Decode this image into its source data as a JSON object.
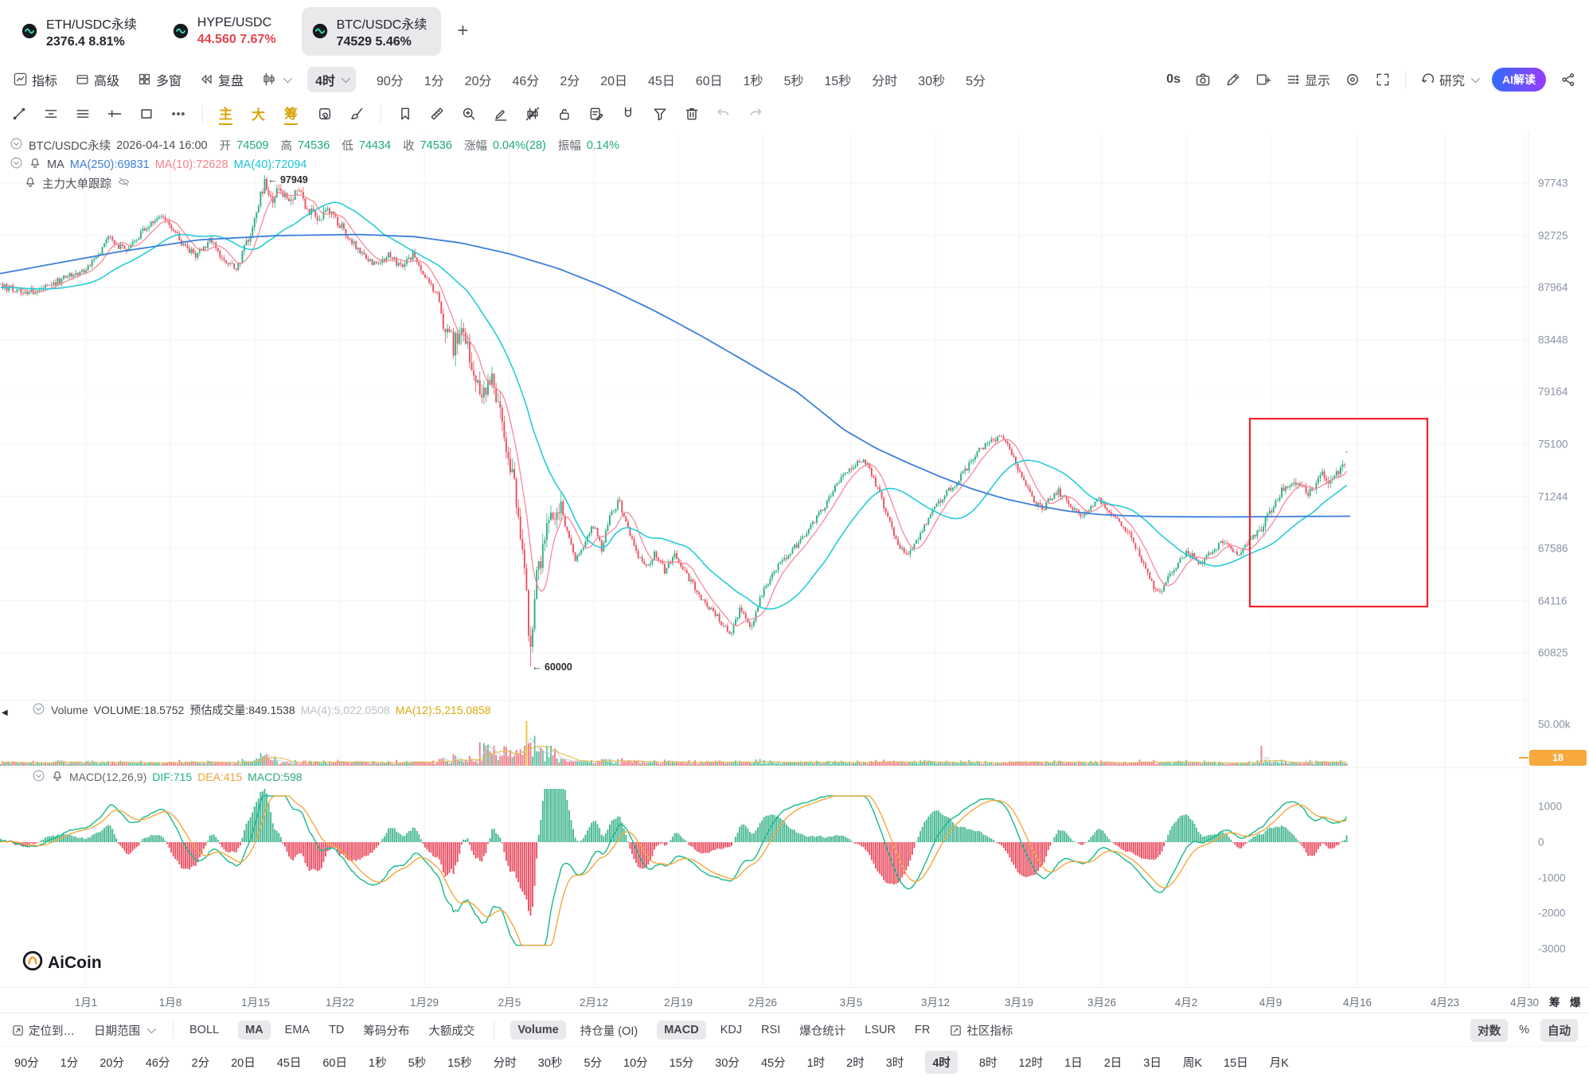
{
  "tabs": {
    "items": [
      {
        "symbol": "ETH/USDC永续",
        "price": "2376.4",
        "change": "8.81%",
        "color": "#23262f",
        "active": false
      },
      {
        "symbol": "HYPE/USDC",
        "price": "44.560",
        "change": "7.67%",
        "color": "#e2444d",
        "active": false
      },
      {
        "symbol": "BTC/USDC永续",
        "price": "74529",
        "change": "5.46%",
        "color": "#23262f",
        "active": true
      }
    ],
    "add_label": "+"
  },
  "toolbar": {
    "menus": [
      {
        "icon": "chart",
        "label": "指标"
      },
      {
        "icon": "panel",
        "label": "高级"
      },
      {
        "icon": "grid",
        "label": "多窗"
      },
      {
        "icon": "rewind",
        "label": "复盘"
      }
    ],
    "interval_selected": "4时",
    "intervals": [
      "90分",
      "1分",
      "20分",
      "46分",
      "2分",
      "20日",
      "45日",
      "60日",
      "1秒",
      "5秒",
      "15秒",
      "分时",
      "30秒",
      "5分"
    ],
    "timer": "0s",
    "right_icons": [
      "camera",
      "pencil",
      "addpane"
    ],
    "display_label": "显示",
    "right_icons2": [
      "target",
      "expand"
    ],
    "research_label": "研究",
    "ai_button": "AI解读"
  },
  "drawbar": {
    "icons_left": [
      "linetool",
      "hlines",
      "hlines2",
      "crossarrow",
      "recttool",
      "dots"
    ],
    "gold": [
      {
        "label": "主",
        "u": true
      },
      {
        "label": "大",
        "u": false
      },
      {
        "label": "筹",
        "u": true
      }
    ],
    "icons_mid": [
      "replay",
      "brush"
    ],
    "icons_right": [
      "bookmark",
      "ruler",
      "zoomin",
      "marker",
      "candlecmp",
      "lock",
      "note",
      "magnet",
      "funnel",
      "trash"
    ],
    "icons_disabled": [
      "undo",
      "redo"
    ]
  },
  "legend": {
    "ohlc": {
      "symbol": "BTC/USDC永续",
      "datetime": "2026-04-14 16:00",
      "o_l": "开",
      "o": "74509",
      "h_l": "高",
      "h": "74536",
      "l_l": "低",
      "l": "74434",
      "c_l": "收",
      "c": "74536",
      "chg_l": "涨幅",
      "chg": "0.04%(28)",
      "amp_l": "振幅",
      "amp": "0.14%"
    },
    "ma_title": "MA",
    "ma_items": [
      {
        "label": "MA(250):69831",
        "color": "#3d7fd9"
      },
      {
        "label": "MA(10):72628",
        "color": "#f6828c"
      },
      {
        "label": "MA(40):72094",
        "color": "#16c5dc"
      }
    ],
    "tracker": "主力大单跟踪"
  },
  "volume_legend": {
    "title": "Volume",
    "v": "VOLUME:18.5752",
    "est": "预估成交量:849.1538",
    "ma4": "MA(4):5,022.0508",
    "ma12": "MA(12):5,215.0858"
  },
  "macd_legend": {
    "title": "MACD(12,26,9)",
    "dif": "DIF:715",
    "dea": "DEA:415",
    "macd": "MACD:598"
  },
  "watermark": "AiCoin",
  "axis": {
    "price": [
      "97743",
      "92725",
      "87964",
      "83448",
      "79164",
      "75100",
      "71244",
      "67586",
      "64116",
      "60825"
    ],
    "volume": "50.00k",
    "volume_badge": "18",
    "macd": [
      "1000",
      "0",
      "-1000",
      "-2000",
      "-3000"
    ],
    "dates": [
      "1月1",
      "1月8",
      "1月15",
      "1月22",
      "1月29",
      "2月5",
      "2月12",
      "2月19",
      "2月26",
      "3月5",
      "3月12",
      "3月19",
      "3月26",
      "4月2",
      "4月9",
      "4月16",
      "4月23",
      "4月30"
    ],
    "side_tabs": [
      "筹",
      "爆"
    ]
  },
  "annotations": {
    "peak": "← 97949",
    "low": "← 60000"
  },
  "bottom": {
    "nav": [
      {
        "icon": "pintarget",
        "label": "定位到…"
      },
      {
        "icon": "",
        "label": "日期范围",
        "chev": true
      }
    ],
    "main_inds": [
      {
        "label": "BOLL"
      },
      {
        "label": "MA",
        "sel": true
      },
      {
        "label": "EMA"
      },
      {
        "label": "TD"
      },
      {
        "label": "筹码分布"
      },
      {
        "label": "大额成交"
      }
    ],
    "sub_inds": [
      {
        "label": "Volume",
        "sel": true
      },
      {
        "label": "持仓量 (OI)"
      },
      {
        "label": "MACD",
        "sel": true
      },
      {
        "label": "KDJ"
      },
      {
        "label": "RSI"
      },
      {
        "label": "爆仓统计"
      },
      {
        "label": "LSUR"
      },
      {
        "label": "FR"
      },
      {
        "label": "社区指标",
        "icon": "edit"
      }
    ],
    "right": [
      {
        "label": "对数",
        "sel": true
      },
      {
        "label": "%"
      },
      {
        "label": "自动",
        "sel": true
      }
    ],
    "timeframes": [
      {
        "label": "90分"
      },
      {
        "label": "1分"
      },
      {
        "label": "20分"
      },
      {
        "label": "46分"
      },
      {
        "label": "2分"
      },
      {
        "label": "20日"
      },
      {
        "label": "45日"
      },
      {
        "label": "60日"
      },
      {
        "label": "1秒"
      },
      {
        "label": "5秒"
      },
      {
        "label": "15秒"
      },
      {
        "label": "分时"
      },
      {
        "label": "30秒"
      },
      {
        "label": "5分"
      },
      {
        "label": "10分"
      },
      {
        "label": "15分"
      },
      {
        "label": "30分"
      },
      {
        "label": "45分"
      },
      {
        "label": "1时"
      },
      {
        "label": "2时"
      },
      {
        "label": "3时"
      },
      {
        "label": "4时",
        "sel": true
      },
      {
        "label": "8时"
      },
      {
        "label": "12时"
      },
      {
        "label": "1日"
      },
      {
        "label": "2日"
      },
      {
        "label": "3日"
      },
      {
        "label": "周K"
      },
      {
        "label": "15日"
      },
      {
        "label": "月K"
      }
    ]
  },
  "chart_data": {
    "type": "candlestick",
    "symbol": "BTC/USDC永续",
    "interval": "4h",
    "log_scale": true,
    "last_candle": {
      "open": 74509,
      "high": 74536,
      "low": 74434,
      "close": 74536,
      "change_pct": "0.04%(28)",
      "amplitude_pct": "0.14%"
    },
    "ma_values": {
      "ma250": 69831,
      "ma10": 72628,
      "ma40": 72094
    },
    "macd_values": {
      "dif": 715,
      "dea": 415,
      "macd": 598
    },
    "volume_values": {
      "current": 18.5752,
      "estimated": 849.1538,
      "ma4": 5022.0508,
      "ma12": 5215.0858
    },
    "price_ticks": [
      97743,
      92725,
      87964,
      83448,
      79164,
      75100,
      71244,
      67586,
      64116,
      60825
    ],
    "macd_ticks": [
      1000,
      0,
      -1000,
      -2000,
      -3000
    ],
    "volume_tick": 50000,
    "annotations": [
      {
        "text": "← 97949",
        "price": 97949
      },
      {
        "text": "← 60000",
        "price": 60000
      }
    ],
    "up_color": "#2fae84",
    "down_color": "#ea5060",
    "price_path": [
      [
        0,
        88000
      ],
      [
        40,
        87600
      ],
      [
        80,
        88800
      ],
      [
        112,
        89800
      ],
      [
        136,
        92400
      ],
      [
        158,
        91200
      ],
      [
        184,
        93600
      ],
      [
        206,
        94500
      ],
      [
        226,
        92100
      ],
      [
        246,
        90800
      ],
      [
        263,
        92400
      ],
      [
        279,
        90300
      ],
      [
        296,
        89700
      ],
      [
        311,
        92200
      ],
      [
        323,
        95600
      ],
      [
        331,
        97800
      ],
      [
        341,
        96200
      ],
      [
        351,
        97400
      ],
      [
        361,
        95700
      ],
      [
        373,
        96900
      ],
      [
        386,
        95200
      ],
      [
        399,
        94200
      ],
      [
        413,
        95200
      ],
      [
        428,
        93400
      ],
      [
        443,
        91900
      ],
      [
        458,
        90800
      ],
      [
        473,
        89900
      ],
      [
        488,
        91000
      ],
      [
        503,
        89700
      ],
      [
        518,
        90900
      ],
      [
        533,
        89100
      ],
      [
        548,
        87300
      ],
      [
        558,
        84600
      ],
      [
        568,
        82900
      ],
      [
        578,
        84900
      ],
      [
        588,
        82100
      ],
      [
        598,
        80300
      ],
      [
        608,
        79000
      ],
      [
        616,
        80700
      ],
      [
        625,
        78000
      ],
      [
        633,
        75900
      ],
      [
        641,
        73300
      ],
      [
        649,
        70600
      ],
      [
        657,
        66700
      ],
      [
        665,
        60900
      ],
      [
        673,
        65400
      ],
      [
        682,
        67900
      ],
      [
        692,
        70000
      ],
      [
        702,
        70700
      ],
      [
        712,
        68500
      ],
      [
        722,
        66900
      ],
      [
        733,
        67800
      ],
      [
        744,
        69300
      ],
      [
        755,
        67500
      ],
      [
        766,
        70000
      ],
      [
        777,
        70900
      ],
      [
        788,
        68900
      ],
      [
        799,
        67100
      ],
      [
        810,
        66300
      ],
      [
        822,
        67300
      ],
      [
        834,
        66100
      ],
      [
        846,
        67200
      ],
      [
        858,
        66100
      ],
      [
        870,
        65100
      ],
      [
        882,
        64200
      ],
      [
        894,
        63400
      ],
      [
        906,
        62700
      ],
      [
        918,
        62100
      ],
      [
        930,
        63700
      ],
      [
        942,
        62400
      ],
      [
        954,
        64300
      ],
      [
        966,
        65600
      ],
      [
        978,
        66400
      ],
      [
        990,
        67200
      ],
      [
        1002,
        68000
      ],
      [
        1014,
        68900
      ],
      [
        1026,
        69800
      ],
      [
        1038,
        70900
      ],
      [
        1050,
        72000
      ],
      [
        1062,
        72900
      ],
      [
        1074,
        73700
      ],
      [
        1085,
        74000
      ],
      [
        1096,
        72600
      ],
      [
        1107,
        70900
      ],
      [
        1118,
        69100
      ],
      [
        1129,
        67700
      ],
      [
        1140,
        67000
      ],
      [
        1152,
        68200
      ],
      [
        1164,
        69600
      ],
      [
        1176,
        70700
      ],
      [
        1188,
        71500
      ],
      [
        1200,
        72300
      ],
      [
        1212,
        73200
      ],
      [
        1224,
        74300
      ],
      [
        1236,
        75000
      ],
      [
        1248,
        75500
      ],
      [
        1258,
        75900
      ],
      [
        1268,
        74800
      ],
      [
        1278,
        73300
      ],
      [
        1288,
        71900
      ],
      [
        1298,
        70900
      ],
      [
        1308,
        70300
      ],
      [
        1318,
        71000
      ],
      [
        1328,
        71600
      ],
      [
        1338,
        70900
      ],
      [
        1348,
        70300
      ],
      [
        1358,
        69800
      ],
      [
        1368,
        70400
      ],
      [
        1378,
        71000
      ],
      [
        1388,
        70500
      ],
      [
        1398,
        69900
      ],
      [
        1408,
        69300
      ],
      [
        1418,
        68500
      ],
      [
        1428,
        67400
      ],
      [
        1438,
        66200
      ],
      [
        1448,
        65000
      ],
      [
        1455,
        64500
      ],
      [
        1463,
        65300
      ],
      [
        1472,
        66100
      ],
      [
        1481,
        66800
      ],
      [
        1490,
        67300
      ],
      [
        1499,
        67000
      ],
      [
        1508,
        66600
      ],
      [
        1517,
        67100
      ],
      [
        1526,
        67700
      ],
      [
        1535,
        68000
      ],
      [
        1544,
        67600
      ],
      [
        1553,
        67200
      ],
      [
        1562,
        67700
      ],
      [
        1571,
        68200
      ],
      [
        1580,
        68700
      ],
      [
        1589,
        69600
      ],
      [
        1598,
        70600
      ],
      [
        1607,
        71400
      ],
      [
        1616,
        72100
      ],
      [
        1625,
        72500
      ],
      [
        1634,
        71900
      ],
      [
        1643,
        71500
      ],
      [
        1652,
        72200
      ],
      [
        1661,
        72800
      ],
      [
        1670,
        72400
      ],
      [
        1679,
        73000
      ],
      [
        1686,
        73600
      ],
      [
        1693,
        74500
      ]
    ],
    "ma250_path": [
      [
        0,
        89200
      ],
      [
        150,
        91200
      ],
      [
        250,
        92300
      ],
      [
        350,
        92700
      ],
      [
        450,
        92800
      ],
      [
        520,
        92600
      ],
      [
        580,
        92000
      ],
      [
        640,
        91000
      ],
      [
        700,
        89700
      ],
      [
        760,
        88000
      ],
      [
        820,
        86000
      ],
      [
        880,
        83800
      ],
      [
        940,
        81500
      ],
      [
        1000,
        79200
      ],
      [
        1060,
        76200
      ],
      [
        1100,
        74800
      ],
      [
        1140,
        73700
      ],
      [
        1180,
        72700
      ],
      [
        1220,
        71800
      ],
      [
        1260,
        71100
      ],
      [
        1300,
        70600
      ],
      [
        1340,
        70200
      ],
      [
        1380,
        69950
      ],
      [
        1430,
        69830
      ],
      [
        1480,
        69790
      ],
      [
        1540,
        69780
      ],
      [
        1600,
        69800
      ],
      [
        1650,
        69820
      ],
      [
        1700,
        69831
      ]
    ]
  }
}
